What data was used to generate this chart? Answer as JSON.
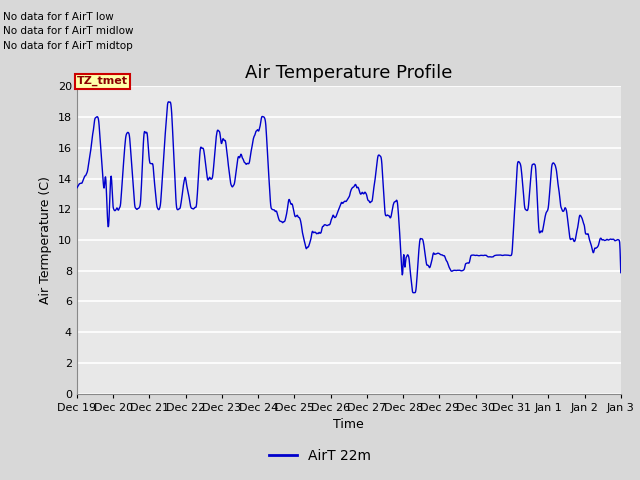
{
  "title": "Air Temperature Profile",
  "xlabel": "Time",
  "ylabel": "Air Termperature (C)",
  "legend_label": "AirT 22m",
  "no_data_texts": [
    "No data for f AirT low",
    "No data for f AirT midlow",
    "No data for f AirT midtop"
  ],
  "tz_label": "TZ_tmet",
  "ylim": [
    0,
    20
  ],
  "yticks": [
    0,
    2,
    4,
    6,
    8,
    10,
    12,
    14,
    16,
    18,
    20
  ],
  "x_tick_labels": [
    "Dec 19",
    "Dec 20",
    "Dec 21",
    "Dec 22",
    "Dec 23",
    "Dec 24",
    "Dec 25",
    "Dec 26",
    "Dec 27",
    "Dec 28",
    "Dec 29",
    "Dec 30",
    "Dec 31",
    "Jan 1",
    "Jan 2",
    "Jan 3"
  ],
  "line_color": "#0000cc",
  "background_color": "#d8d8d8",
  "plot_bg_color": "#e8e8e8",
  "grid_color": "#ffffff",
  "title_fontsize": 13,
  "axis_label_fontsize": 9,
  "tick_fontsize": 8,
  "legend_fontsize": 10
}
